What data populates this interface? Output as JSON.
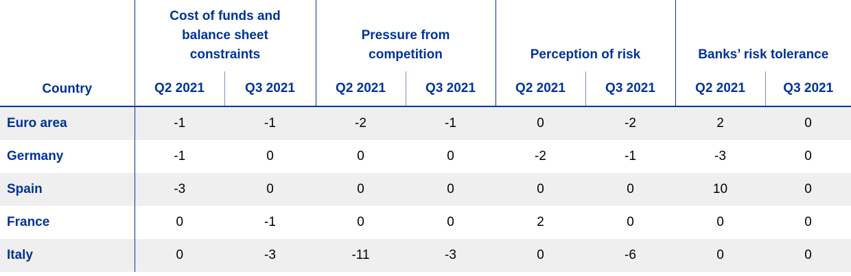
{
  "header": {
    "country_label": "Country",
    "groups": [
      "Cost of funds and balance sheet constraints",
      "Pressure from competition",
      "Perception of risk",
      "Banks’ risk tolerance"
    ],
    "periods": [
      "Q2 2021",
      "Q3 2021"
    ]
  },
  "rows": [
    {
      "country": "Euro area",
      "values": [
        "-1",
        "-1",
        "-2",
        "-1",
        "0",
        "-2",
        "2",
        "0"
      ]
    },
    {
      "country": "Germany",
      "values": [
        "-1",
        "0",
        "0",
        "0",
        "-2",
        "-1",
        "-3",
        "0"
      ]
    },
    {
      "country": "Spain",
      "values": [
        "-3",
        "0",
        "0",
        "0",
        "0",
        "0",
        "10",
        "0"
      ]
    },
    {
      "country": "France",
      "values": [
        "0",
        "-1",
        "0",
        "0",
        "2",
        "0",
        "0",
        "0"
      ]
    },
    {
      "country": "Italy",
      "values": [
        "0",
        "-3",
        "-11",
        "-3",
        "0",
        "-6",
        "0",
        "0"
      ]
    }
  ]
}
